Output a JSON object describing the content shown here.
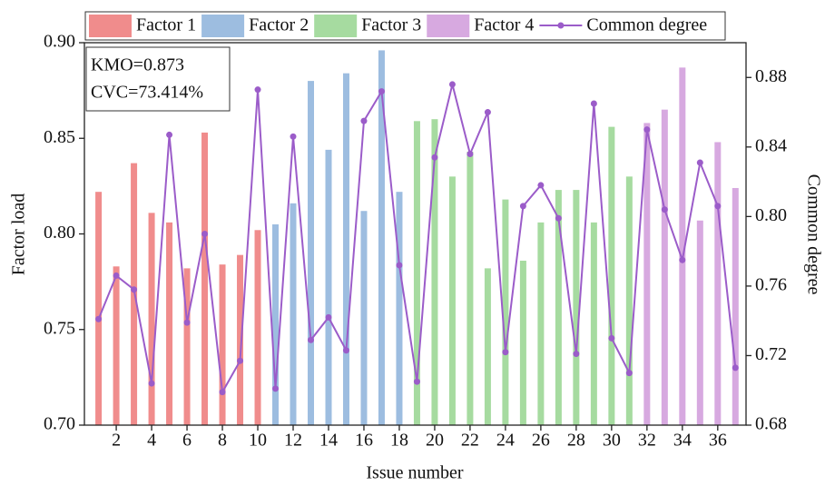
{
  "chart_data": {
    "type": "combo",
    "xlabel": "Issue number",
    "ylabel": "Factor load",
    "y2label": "Common degree",
    "annotations": [
      "KMO=0.873",
      "CVC=73.414%"
    ],
    "x": [
      1,
      2,
      3,
      4,
      5,
      6,
      7,
      8,
      9,
      10,
      11,
      12,
      13,
      14,
      15,
      16,
      17,
      18,
      19,
      20,
      21,
      22,
      23,
      24,
      25,
      26,
      27,
      28,
      29,
      30,
      31,
      32,
      33,
      34,
      35,
      36,
      37
    ],
    "xlim": [
      0.2,
      37.6
    ],
    "xticks": [
      2,
      4,
      6,
      8,
      10,
      12,
      14,
      16,
      18,
      20,
      22,
      24,
      26,
      28,
      30,
      32,
      34,
      36
    ],
    "ylim": [
      0.7,
      0.9
    ],
    "yticks": [
      {
        "value": 0.7,
        "label": "0.70"
      },
      0.75,
      {
        "value": 0.8,
        "label": "0.80"
      },
      0.85,
      {
        "value": 0.9,
        "label": "0.90"
      }
    ],
    "y2lim": [
      0.68,
      0.9
    ],
    "y2ticks": [
      0.68,
      0.72,
      0.76,
      {
        "value": 0.8,
        "label": "0.80"
      },
      0.84,
      0.88
    ],
    "series": [
      {
        "name": "Factor 1",
        "type": "bar",
        "color": "#f08c8c",
        "values": [
          0.822,
          0.783,
          0.837,
          0.811,
          0.806,
          0.782,
          0.853,
          0.784,
          0.789,
          0.802,
          null,
          null,
          null,
          null,
          null,
          null,
          null,
          null,
          null,
          null,
          null,
          null,
          null,
          null,
          null,
          null,
          null,
          null,
          null,
          null,
          null,
          null,
          null,
          null,
          null,
          null,
          null
        ]
      },
      {
        "name": "Factor 2",
        "type": "bar",
        "color": "#9dbde0",
        "values": [
          null,
          null,
          null,
          null,
          null,
          null,
          null,
          null,
          null,
          null,
          0.805,
          0.816,
          0.88,
          0.844,
          0.884,
          0.812,
          0.896,
          0.822,
          null,
          null,
          null,
          null,
          null,
          null,
          null,
          null,
          null,
          null,
          null,
          null,
          null,
          null,
          null,
          null,
          null,
          null,
          null
        ]
      },
      {
        "name": "Factor 3",
        "type": "bar",
        "color": "#a6dba0",
        "values": [
          null,
          null,
          null,
          null,
          null,
          null,
          null,
          null,
          null,
          null,
          null,
          null,
          null,
          null,
          null,
          null,
          null,
          null,
          0.859,
          0.86,
          0.83,
          0.843,
          0.782,
          0.818,
          0.786,
          0.806,
          0.823,
          0.823,
          0.806,
          0.856,
          0.83,
          null,
          null,
          null,
          null,
          null,
          null
        ]
      },
      {
        "name": "Factor 4",
        "type": "bar",
        "color": "#d7a9e0",
        "values": [
          null,
          null,
          null,
          null,
          null,
          null,
          null,
          null,
          null,
          null,
          null,
          null,
          null,
          null,
          null,
          null,
          null,
          null,
          null,
          null,
          null,
          null,
          null,
          null,
          null,
          null,
          null,
          null,
          null,
          null,
          null,
          0.858,
          0.865,
          0.887,
          0.807,
          0.848,
          0.824
        ]
      },
      {
        "name": "Common degree",
        "type": "line",
        "axis": "y2",
        "color": "#9b5cc9",
        "values": [
          0.741,
          0.766,
          0.758,
          0.704,
          0.847,
          0.739,
          0.79,
          0.699,
          0.717,
          0.873,
          0.701,
          0.846,
          0.729,
          0.742,
          0.723,
          0.855,
          0.872,
          0.772,
          0.705,
          0.834,
          0.876,
          0.836,
          0.86,
          0.722,
          0.806,
          0.818,
          0.799,
          0.721,
          0.865,
          0.73,
          0.71,
          0.85,
          0.804,
          0.775,
          0.831,
          0.806,
          0.713
        ]
      }
    ]
  }
}
